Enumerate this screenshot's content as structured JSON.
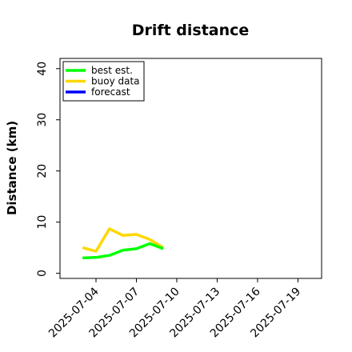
{
  "chart_data": {
    "type": "line",
    "title": "Drift distance",
    "xlabel": "",
    "ylabel": "Distance (km)",
    "ylim": [
      -1,
      42
    ],
    "yticks": [
      0,
      10,
      20,
      30,
      40
    ],
    "xticks": [
      "2025-07-04",
      "2025-07-07",
      "2025-07-10",
      "2025-07-13",
      "2025-07-16",
      "2025-07-19"
    ],
    "highlighted_xtick": "2025-07-10",
    "highlight_color": "#2ca02c",
    "legend_position": "upper left",
    "series": [
      {
        "name": "best est.",
        "color": "#00ff00",
        "x": [
          "2025-07-03",
          "2025-07-04",
          "2025-07-05",
          "2025-07-06",
          "2025-07-07",
          "2025-07-08",
          "2025-07-09"
        ],
        "y": [
          3.0,
          3.1,
          3.5,
          4.5,
          4.8,
          5.8,
          4.8
        ]
      },
      {
        "name": "buoy data",
        "color": "#ffd700",
        "x": [
          "2025-07-03",
          "2025-07-04",
          "2025-07-05",
          "2025-07-06",
          "2025-07-07",
          "2025-07-08",
          "2025-07-09"
        ],
        "y": [
          5.0,
          4.3,
          8.7,
          7.4,
          7.6,
          6.6,
          5.0
        ]
      },
      {
        "name": "forecast",
        "color": "#0000ff",
        "x": [],
        "y": []
      }
    ]
  }
}
